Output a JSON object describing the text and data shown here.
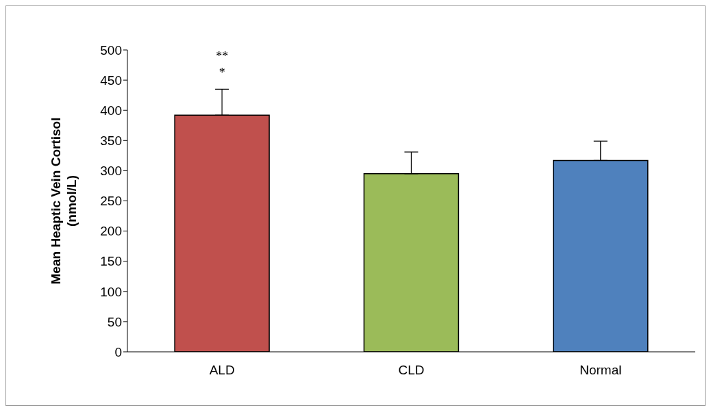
{
  "chart_data": {
    "type": "bar",
    "ylabel": "Mean Heaptic Vein Cortisol\n(nmol/L)",
    "categories": [
      "ALD",
      "CLD",
      "Normal"
    ],
    "values": [
      392,
      295,
      317
    ],
    "colors": [
      "#c0504d",
      "#9bbb59",
      "#4f81bd"
    ],
    "errors": [
      [
        392,
        435
      ],
      [
        295,
        331
      ],
      [
        317,
        349
      ]
    ],
    "ylim": [
      0,
      500
    ],
    "yticks": [
      0,
      50,
      100,
      150,
      200,
      250,
      300,
      350,
      400,
      450,
      500
    ],
    "grid": false,
    "legend": false,
    "annotations": [
      {
        "text": "**",
        "x": "ALD",
        "y": 435
      },
      {
        "text": "*",
        "x": "ALD",
        "y": 435
      }
    ]
  }
}
